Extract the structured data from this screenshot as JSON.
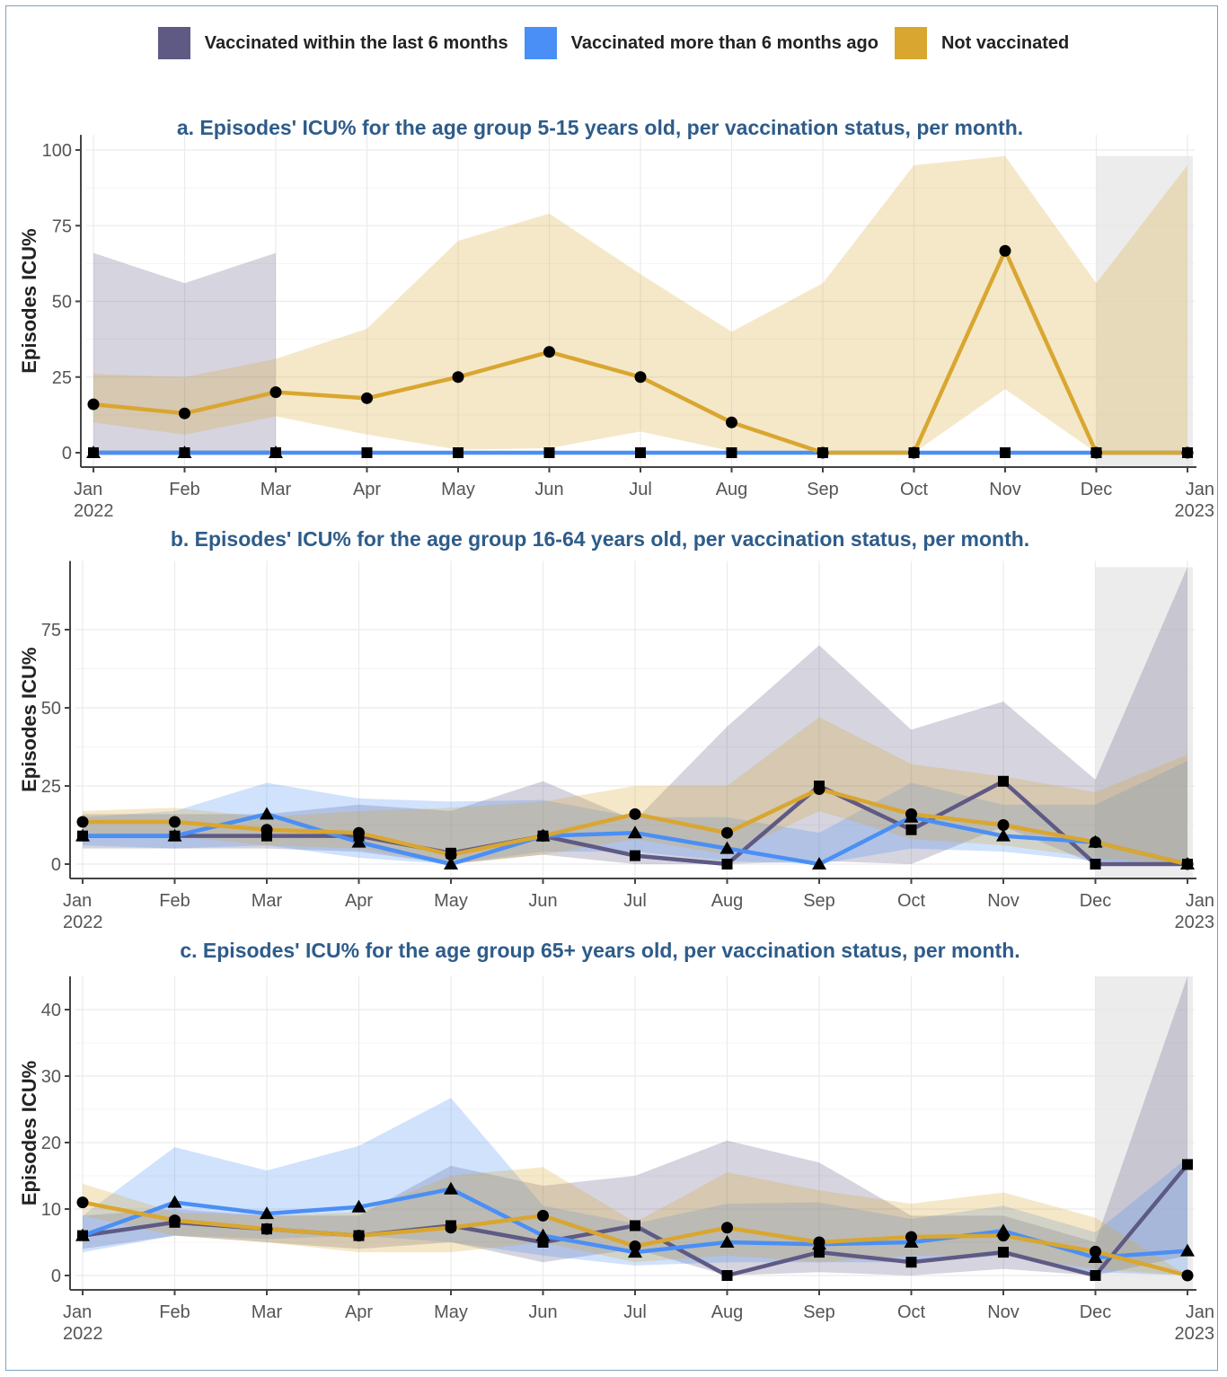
{
  "colors": {
    "within6": "#5e5a84",
    "more6": "#4a8ff5",
    "notvac": "#d9a630",
    "title": "#2e5c8a",
    "grid": "#ebebeb",
    "axis": "#444444",
    "tick_text": "#555555",
    "shade": "#e6e6e6"
  },
  "legend": {
    "items": [
      {
        "label": "Vaccinated within the last 6 months",
        "color": "#5e5a84"
      },
      {
        "label": "Vaccinated more than 6 months ago",
        "color": "#4a8ff5"
      },
      {
        "label": "Not vaccinated",
        "color": "#d9a630"
      }
    ]
  },
  "chart_data": [
    {
      "type": "line",
      "title": "a. Episodes' ICU% for the age group 5-15 years old, per vaccination status, per month.",
      "ylabel": "Episodes  ICU%",
      "x": [
        "Jan\n2022",
        "Feb",
        "Mar",
        "Apr",
        "May",
        "Jun",
        "Jul",
        "Aug",
        "Sep",
        "Oct",
        "Nov",
        "Dec",
        "Jan\n2023"
      ],
      "ylim": [
        -5,
        105
      ],
      "yticks": [
        0,
        25,
        50,
        75,
        100
      ],
      "shaded_from": "Dec",
      "shaded_top": 98,
      "series": [
        {
          "name": "Vaccinated within the last 6 months",
          "marker": "triangle",
          "values": [
            0,
            0,
            0,
            null,
            null,
            null,
            null,
            null,
            null,
            null,
            null,
            null,
            null
          ],
          "ci_low": [
            0,
            0,
            0,
            null,
            null,
            null,
            null,
            null,
            null,
            null,
            null,
            null,
            null
          ],
          "ci_high": [
            66,
            56,
            66,
            null,
            null,
            null,
            null,
            null,
            null,
            null,
            null,
            null,
            null
          ]
        },
        {
          "name": "Vaccinated more than 6 months ago",
          "marker": "square",
          "values": [
            0,
            0,
            0,
            0,
            0,
            0,
            0,
            0,
            0,
            0,
            0,
            0,
            0
          ],
          "ci_low": [
            0,
            0,
            0,
            0,
            0,
            0,
            0,
            0,
            0,
            0,
            0,
            0,
            0
          ],
          "ci_high": [
            0,
            0,
            0,
            0,
            0,
            0,
            0,
            0,
            0,
            0,
            0,
            0,
            0
          ]
        },
        {
          "name": "Not vaccinated",
          "marker": "circle",
          "values": [
            16,
            13,
            20,
            18,
            25,
            33.3,
            25,
            10,
            0,
            0,
            66.7,
            0,
            0
          ],
          "ci_low": [
            10,
            6,
            12,
            6,
            1,
            1.5,
            7,
            0.5,
            0,
            0,
            21,
            0,
            0
          ],
          "ci_high": [
            26,
            25,
            31,
            41,
            70,
            79,
            59,
            40,
            56,
            95,
            98,
            56,
            95
          ]
        }
      ]
    },
    {
      "type": "line",
      "title": "b. Episodes' ICU% for the age group 16-64 years old, per vaccination status, per month.",
      "ylabel": "Episodes  ICU%",
      "x": [
        "Jan\n2022",
        "Feb",
        "Mar",
        "Apr",
        "May",
        "Jun",
        "Jul",
        "Aug",
        "Sep",
        "Oct",
        "Nov",
        "Dec",
        "Jan\n2023"
      ],
      "ylim": [
        -5,
        97
      ],
      "yticks": [
        0,
        25,
        50,
        75
      ],
      "shaded_from": "Dec",
      "shaded_top": 95,
      "series": [
        {
          "name": "Vaccinated within the last 6 months",
          "marker": "square",
          "values": [
            9,
            9,
            9,
            9,
            3.5,
            9,
            2.7,
            0,
            25,
            11,
            26.5,
            0,
            0
          ],
          "ci_low": [
            5,
            5,
            5,
            4,
            0,
            3,
            0,
            0,
            1,
            0,
            12,
            0,
            0
          ],
          "ci_high": [
            16,
            16,
            16,
            19,
            17,
            26.5,
            14,
            44,
            70,
            43,
            52,
            27,
            95
          ]
        },
        {
          "name": "Vaccinated more than 6 months ago",
          "marker": "triangle",
          "values": [
            9,
            9,
            16,
            7,
            0,
            9,
            10,
            5,
            0,
            15,
            9,
            7,
            0
          ],
          "ci_low": [
            6,
            5,
            6,
            2,
            0,
            4,
            4,
            1,
            0,
            5,
            4,
            1,
            0
          ],
          "ci_high": [
            15,
            17,
            26,
            21,
            20,
            20.5,
            15,
            15,
            10,
            26,
            19,
            19,
            33
          ]
        },
        {
          "name": "Not vaccinated",
          "marker": "circle",
          "values": [
            13.5,
            13.5,
            11,
            10,
            3,
            9,
            16,
            10,
            24,
            16,
            12.5,
            7,
            0
          ],
          "ci_low": [
            9,
            9,
            6,
            5,
            0,
            3,
            8,
            3,
            17,
            8,
            6,
            2,
            0
          ],
          "ci_high": [
            17,
            18,
            15,
            17,
            18,
            20,
            25,
            25,
            47,
            32,
            28,
            23,
            35
          ]
        }
      ]
    },
    {
      "type": "line",
      "title": "c. Episodes' ICU% for the age group 65+ years old, per vaccination status, per month.",
      "ylabel": "Episodes  ICU%",
      "x": [
        "Jan\n2022",
        "Feb",
        "Mar",
        "Apr",
        "May",
        "Jun",
        "Jul",
        "Aug",
        "Sep",
        "Oct",
        "Nov",
        "Dec",
        "Jan\n2023"
      ],
      "ylim": [
        -2.5,
        45
      ],
      "yticks": [
        0,
        10,
        20,
        30,
        40
      ],
      "shaded_from": "Dec",
      "shaded_top": 45,
      "series": [
        {
          "name": "Vaccinated within the last 6 months",
          "marker": "square",
          "values": [
            6,
            8,
            7,
            6,
            7.5,
            5,
            7.5,
            0,
            3.5,
            2,
            3.5,
            0,
            16.7
          ],
          "ci_low": [
            4,
            6,
            5,
            4,
            5,
            2,
            4,
            0,
            0.5,
            0,
            1,
            0,
            3
          ],
          "ci_high": [
            9,
            10,
            9,
            9,
            16.5,
            13.5,
            15,
            20.3,
            17,
            9,
            9,
            5,
            45
          ]
        },
        {
          "name": "Vaccinated more than 6 months ago",
          "marker": "triangle",
          "values": [
            6,
            11,
            9.3,
            10.3,
            13,
            6,
            3.5,
            5,
            4.7,
            5,
            6.7,
            2.7,
            3.7
          ],
          "ci_low": [
            3.5,
            6,
            5.5,
            6,
            5,
            3,
            1.5,
            2,
            2,
            2,
            3,
            0.5,
            0
          ],
          "ci_high": [
            9,
            19.3,
            15.8,
            19.5,
            26.7,
            10.5,
            7.8,
            10.8,
            11,
            8.5,
            10.5,
            6.5,
            17.7
          ]
        },
        {
          "name": "Not vaccinated",
          "marker": "circle",
          "values": [
            11,
            8.3,
            7,
            6,
            7.2,
            9,
            4.4,
            7.2,
            5,
            5.8,
            6,
            3.6,
            0
          ],
          "ci_low": [
            9,
            6,
            5,
            3.5,
            3.5,
            5,
            2,
            3,
            2,
            3,
            3,
            1,
            0
          ],
          "ci_high": [
            13.8,
            9.5,
            9,
            9.5,
            15,
            16.3,
            8,
            15.5,
            12.8,
            10.8,
            12.5,
            8.7,
            0
          ]
        }
      ]
    }
  ]
}
